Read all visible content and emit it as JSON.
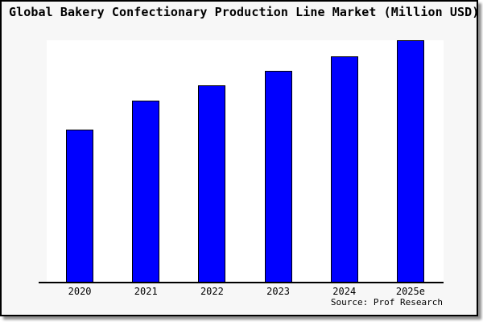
{
  "title": "Global Bakery Confectionary Production Line Market (Million USD)",
  "source": "Source: Prof Research",
  "colors": {
    "bar": "#0000ff",
    "bar_border": "#000000",
    "canvas_background": "#f7f7f7",
    "plot_background": "#ffffff",
    "frame_border": "#000000",
    "axis": "#000000",
    "shadow": "#8e8e8e",
    "text": "#000000"
  },
  "chart_data": {
    "type": "bar",
    "title": "Global Bakery Confectionary Production Line Market (Million USD)",
    "categories": [
      "2020",
      "2021",
      "2022",
      "2023",
      "2024",
      "2025e"
    ],
    "values": [
      63,
      75,
      81.5,
      87.5,
      93.5,
      100
    ],
    "value_note": "No y-axis labels shown in chart; values are relative estimates from bar heights with 2025e = 100",
    "xlabel": "",
    "ylabel": "",
    "ylim": [
      0,
      100
    ],
    "grid": false,
    "legend": false,
    "y_axis_visible": false,
    "source_annotation": "Source: Prof Research"
  }
}
